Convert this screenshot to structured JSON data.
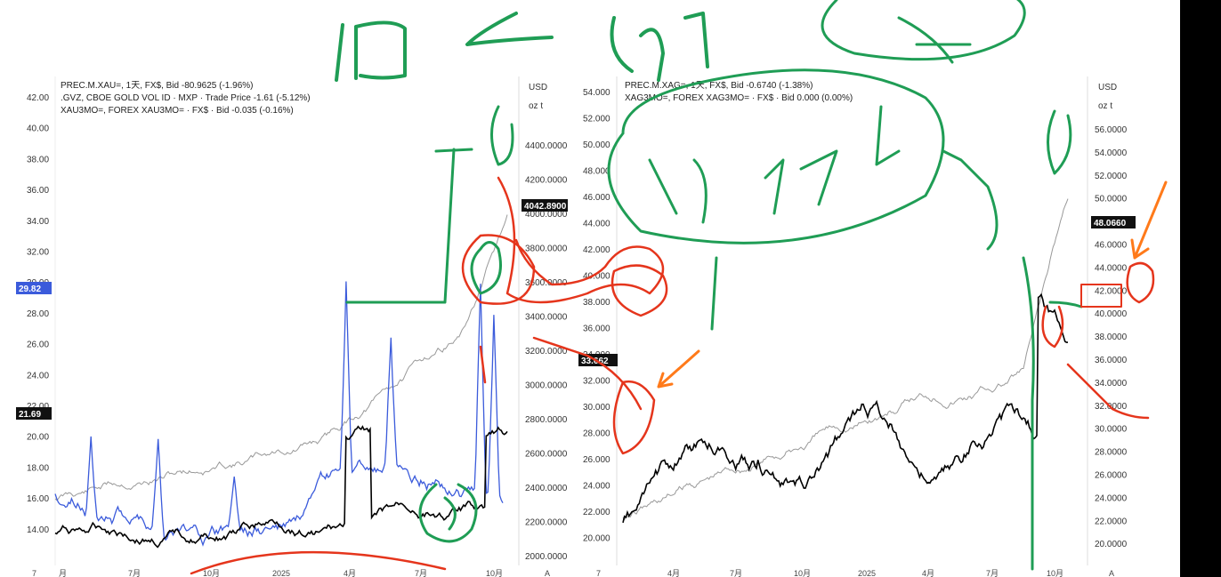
{
  "left_chart": {
    "legend": [
      "PREC.M.XAU=, 1天, FX$, Bid  -80.9625 (-1.96%)",
      ".GVZ, CBOE GOLD VOL ID · MXP · Trade Price  -1.61 (-5.12%)",
      "XAU3MO=, FOREX XAU3MO= · FX$ · Bid  -0.035 (-0.16%)"
    ],
    "left_axis_ticks": [
      "42.00",
      "40.00",
      "38.00",
      "36.00",
      "34.00",
      "32.00",
      "30.00",
      "28.00",
      "26.00",
      "24.00",
      "22.00",
      "20.00",
      "18.00",
      "16.00",
      "14.00"
    ],
    "right_axis_unit": [
      "USD",
      "oz t"
    ],
    "right_axis_ticks": [
      "4400.0000",
      "4200.0000",
      "4000.0000",
      "3800.0000",
      "3600.0000",
      "3400.0000",
      "3200.0000",
      "3000.0000",
      "2800.0000",
      "2600.0000",
      "2400.0000",
      "2200.0000",
      "2000.0000"
    ],
    "x_ticks": [
      "7",
      "月",
      "7月",
      "10月",
      "2025",
      "4月",
      "7月",
      "10月",
      "A"
    ],
    "flags": {
      "blue": "29.82",
      "black": "21.69",
      "price": "4042.8900"
    }
  },
  "right_chart": {
    "legend": [
      "PREC.M.XAG=, 1天, FX$, Bid  -0.6740 (-1.38%)",
      "XAG3MO=, FOREX XAG3MO= · FX$ · Bid  0.000 (0.00%)"
    ],
    "left_axis_ticks": [
      "54.000",
      "52.000",
      "50.000",
      "48.000",
      "46.000",
      "44.000",
      "42.000",
      "40.000",
      "38.000",
      "36.000",
      "34.000",
      "32.000",
      "30.000",
      "28.000",
      "26.000",
      "24.000",
      "22.000",
      "20.000"
    ],
    "right_axis_unit": [
      "USD",
      "oz t"
    ],
    "right_axis_ticks": [
      "56.0000",
      "54.0000",
      "52.0000",
      "50.0000",
      "48.0000",
      "46.0000",
      "44.0000",
      "42.0000",
      "40.0000",
      "38.0000",
      "36.0000",
      "34.0000",
      "32.0000",
      "30.0000",
      "28.0000",
      "26.0000",
      "24.0000",
      "22.0000",
      "20.0000"
    ],
    "x_ticks": [
      "7",
      "4月",
      "7月",
      "10月",
      "2025",
      "4月",
      "7月",
      "10月",
      "A"
    ],
    "flags": {
      "left": "33.662",
      "right": "48.0660"
    }
  },
  "colors": {
    "gvz": "#3b5bdb",
    "xau": "#888888",
    "xau3mo": "#000000",
    "ink_green": "#1f9d55",
    "ink_red": "#e5351c",
    "ink_orange": "#ff7a1a"
  }
}
